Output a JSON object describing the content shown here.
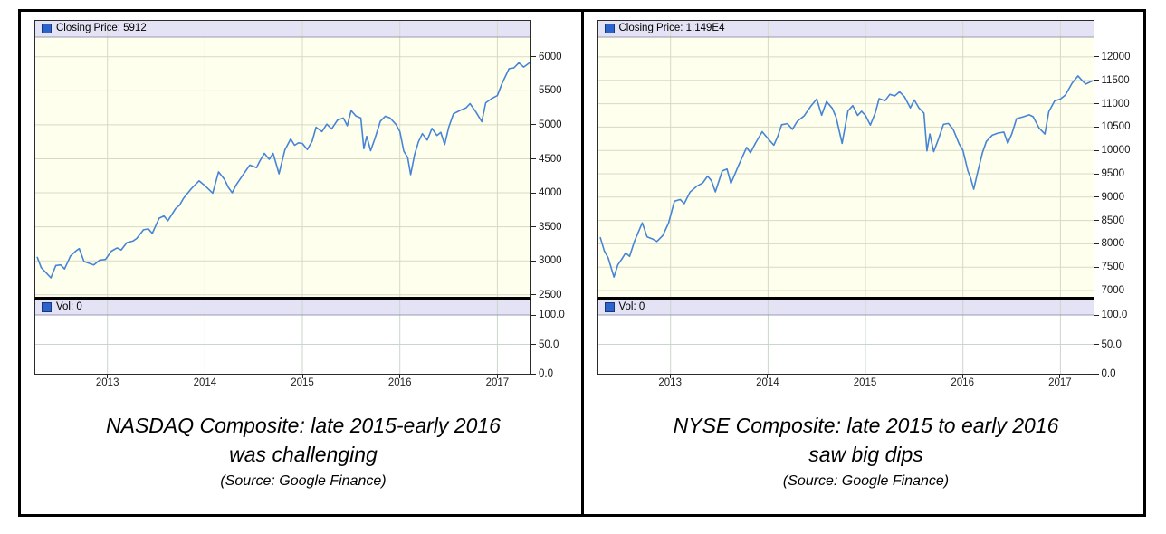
{
  "colors": {
    "line": "#4684d6",
    "legend_swatch": "#2b65cc",
    "legend_swatch_border": "#16377f",
    "plot_bg": "#ffffee",
    "strip_bg": "#e3e3f5",
    "strip_border": "#9a9ab4",
    "grid": "#d7d9c6",
    "vol_grid": "#c9d6c9",
    "panel_border": "#2b2b2b",
    "frame_border": "#000000"
  },
  "chart_data": [
    {
      "type": "line",
      "title": "NASDAQ Composite: late 2015-early 2016 was challenging",
      "legend_label": "Closing Price: 5912",
      "vol_label": "Vol: 0",
      "vol_value": 0,
      "caption": [
        "NASDAQ Composite: late 2015-early 2016",
        "was challenging",
        "(Source: Google Finance)"
      ],
      "xlabel": "",
      "ylabel": "",
      "legend_position": "top-left",
      "grid": true,
      "xticks": [
        2013,
        2014,
        2015,
        2016,
        2017
      ],
      "xlim": [
        2012.26,
        2017.34
      ],
      "yticks": [
        2500,
        3000,
        3500,
        4000,
        4500,
        5000,
        5500,
        6000
      ],
      "ylim": [
        2470,
        6290
      ],
      "vol_yticks": [
        "100.0",
        "50.0",
        "0.0"
      ],
      "vol_ylim": [
        0,
        100
      ],
      "series": [
        {
          "name": "Closing Price",
          "points": [
            [
              2012.28,
              3050
            ],
            [
              2012.32,
              2900
            ],
            [
              2012.36,
              2840
            ],
            [
              2012.42,
              2750
            ],
            [
              2012.47,
              2930
            ],
            [
              2012.52,
              2940
            ],
            [
              2012.56,
              2880
            ],
            [
              2012.62,
              3070
            ],
            [
              2012.68,
              3150
            ],
            [
              2012.71,
              3180
            ],
            [
              2012.76,
              2990
            ],
            [
              2012.82,
              2960
            ],
            [
              2012.86,
              2940
            ],
            [
              2012.92,
              3010
            ],
            [
              2012.98,
              3020
            ],
            [
              2013.04,
              3142
            ],
            [
              2013.1,
              3190
            ],
            [
              2013.14,
              3160
            ],
            [
              2013.2,
              3268
            ],
            [
              2013.26,
              3290
            ],
            [
              2013.3,
              3329
            ],
            [
              2013.37,
              3456
            ],
            [
              2013.42,
              3470
            ],
            [
              2013.46,
              3403
            ],
            [
              2013.53,
              3626
            ],
            [
              2013.58,
              3660
            ],
            [
              2013.62,
              3590
            ],
            [
              2013.7,
              3771
            ],
            [
              2013.74,
              3820
            ],
            [
              2013.78,
              3920
            ],
            [
              2013.86,
              4060
            ],
            [
              2013.94,
              4177
            ],
            [
              2014.0,
              4104
            ],
            [
              2014.08,
              3996
            ],
            [
              2014.14,
              4308
            ],
            [
              2014.2,
              4199
            ],
            [
              2014.24,
              4080
            ],
            [
              2014.28,
              4000
            ],
            [
              2014.32,
              4115
            ],
            [
              2014.38,
              4243
            ],
            [
              2014.46,
              4408
            ],
            [
              2014.53,
              4370
            ],
            [
              2014.56,
              4460
            ],
            [
              2014.61,
              4580
            ],
            [
              2014.66,
              4493
            ],
            [
              2014.7,
              4580
            ],
            [
              2014.76,
              4280
            ],
            [
              2014.82,
              4631
            ],
            [
              2014.88,
              4792
            ],
            [
              2014.92,
              4700
            ],
            [
              2014.96,
              4736
            ],
            [
              2015.0,
              4726
            ],
            [
              2015.05,
              4635
            ],
            [
              2015.1,
              4760
            ],
            [
              2015.14,
              4964
            ],
            [
              2015.2,
              4901
            ],
            [
              2015.25,
              5010
            ],
            [
              2015.3,
              4941
            ],
            [
              2015.36,
              5070
            ],
            [
              2015.42,
              5100
            ],
            [
              2015.46,
              4987
            ],
            [
              2015.5,
              5210
            ],
            [
              2015.55,
              5128
            ],
            [
              2015.6,
              5100
            ],
            [
              2015.63,
              4650
            ],
            [
              2015.66,
              4830
            ],
            [
              2015.7,
              4620
            ],
            [
              2015.74,
              4780
            ],
            [
              2015.8,
              5054
            ],
            [
              2015.85,
              5127
            ],
            [
              2015.9,
              5100
            ],
            [
              2015.96,
              5007
            ],
            [
              2016.0,
              4900
            ],
            [
              2016.04,
              4614
            ],
            [
              2016.08,
              4520
            ],
            [
              2016.11,
              4267
            ],
            [
              2016.15,
              4558
            ],
            [
              2016.19,
              4750
            ],
            [
              2016.23,
              4870
            ],
            [
              2016.28,
              4775
            ],
            [
              2016.33,
              4948
            ],
            [
              2016.38,
              4843
            ],
            [
              2016.42,
              4890
            ],
            [
              2016.46,
              4710
            ],
            [
              2016.5,
              4960
            ],
            [
              2016.55,
              5162
            ],
            [
              2016.62,
              5213
            ],
            [
              2016.68,
              5250
            ],
            [
              2016.72,
              5312
            ],
            [
              2016.78,
              5189
            ],
            [
              2016.84,
              5046
            ],
            [
              2016.88,
              5324
            ],
            [
              2016.94,
              5383
            ],
            [
              2017.0,
              5430
            ],
            [
              2017.05,
              5615
            ],
            [
              2017.12,
              5825
            ],
            [
              2017.17,
              5838
            ],
            [
              2017.22,
              5912
            ],
            [
              2017.27,
              5850
            ],
            [
              2017.33,
              5912
            ]
          ]
        }
      ]
    },
    {
      "type": "line",
      "title": "NYSE Composite: late 2015 to early 2016 saw big dips",
      "legend_label": "Closing Price: 1.149E4",
      "vol_label": "Vol: 0",
      "vol_value": 0,
      "caption": [
        "NYSE Composite: late 2015 to early 2016",
        "saw big dips",
        "(Source: Google Finance)"
      ],
      "xlabel": "",
      "ylabel": "",
      "legend_position": "top-left",
      "grid": true,
      "xticks": [
        2013,
        2014,
        2015,
        2016,
        2017
      ],
      "xlim": [
        2012.26,
        2017.34
      ],
      "yticks": [
        7000,
        7500,
        8000,
        8500,
        9000,
        9500,
        10000,
        10500,
        11000,
        11500,
        12000
      ],
      "ylim": [
        6865,
        12425
      ],
      "vol_yticks": [
        "100.0",
        "50.0",
        "0.0"
      ],
      "vol_ylim": [
        0,
        100
      ],
      "series": [
        {
          "name": "Closing Price",
          "points": [
            [
              2012.28,
              8130
            ],
            [
              2012.32,
              7850
            ],
            [
              2012.36,
              7700
            ],
            [
              2012.42,
              7290
            ],
            [
              2012.46,
              7550
            ],
            [
              2012.5,
              7672
            ],
            [
              2012.54,
              7805
            ],
            [
              2012.58,
              7730
            ],
            [
              2012.63,
              8051
            ],
            [
              2012.68,
              8300
            ],
            [
              2012.71,
              8450
            ],
            [
              2012.76,
              8148
            ],
            [
              2012.82,
              8100
            ],
            [
              2012.86,
              8050
            ],
            [
              2012.92,
              8176
            ],
            [
              2012.98,
              8444
            ],
            [
              2013.04,
              8912
            ],
            [
              2013.1,
              8950
            ],
            [
              2013.14,
              8860
            ],
            [
              2013.2,
              9107
            ],
            [
              2013.27,
              9234
            ],
            [
              2013.33,
              9302
            ],
            [
              2013.38,
              9450
            ],
            [
              2013.42,
              9350
            ],
            [
              2013.46,
              9113
            ],
            [
              2013.53,
              9559
            ],
            [
              2013.58,
              9600
            ],
            [
              2013.62,
              9293
            ],
            [
              2013.7,
              9690
            ],
            [
              2013.78,
              10063
            ],
            [
              2013.82,
              9950
            ],
            [
              2013.87,
              10151
            ],
            [
              2013.94,
              10401
            ],
            [
              2014.0,
              10250
            ],
            [
              2014.06,
              10111
            ],
            [
              2014.1,
              10300
            ],
            [
              2014.14,
              10549
            ],
            [
              2014.2,
              10572
            ],
            [
              2014.25,
              10450
            ],
            [
              2014.3,
              10624
            ],
            [
              2014.37,
              10737
            ],
            [
              2014.44,
              10948
            ],
            [
              2014.5,
              11100
            ],
            [
              2014.55,
              10753
            ],
            [
              2014.6,
              11046
            ],
            [
              2014.66,
              10900
            ],
            [
              2014.7,
              10703
            ],
            [
              2014.76,
              10150
            ],
            [
              2014.82,
              10846
            ],
            [
              2014.87,
              10959
            ],
            [
              2014.92,
              10750
            ],
            [
              2014.96,
              10839
            ],
            [
              2015.0,
              10750
            ],
            [
              2015.05,
              10541
            ],
            [
              2015.1,
              10800
            ],
            [
              2015.14,
              11108
            ],
            [
              2015.2,
              11063
            ],
            [
              2015.25,
              11200
            ],
            [
              2015.3,
              11166
            ],
            [
              2015.35,
              11254
            ],
            [
              2015.4,
              11148
            ],
            [
              2015.46,
              10910
            ],
            [
              2015.5,
              11080
            ],
            [
              2015.55,
              10902
            ],
            [
              2015.6,
              10800
            ],
            [
              2015.63,
              9990
            ],
            [
              2015.66,
              10350
            ],
            [
              2015.7,
              9972
            ],
            [
              2015.75,
              10250
            ],
            [
              2015.8,
              10557
            ],
            [
              2015.85,
              10576
            ],
            [
              2015.9,
              10450
            ],
            [
              2015.96,
              10143
            ],
            [
              2016.0,
              10000
            ],
            [
              2016.05,
              9566
            ],
            [
              2016.08,
              9400
            ],
            [
              2016.11,
              9169
            ],
            [
              2016.15,
              9531
            ],
            [
              2016.2,
              9950
            ],
            [
              2016.24,
              10194
            ],
            [
              2016.3,
              10325
            ],
            [
              2016.36,
              10371
            ],
            [
              2016.42,
              10392
            ],
            [
              2016.46,
              10150
            ],
            [
              2016.5,
              10350
            ],
            [
              2016.55,
              10679
            ],
            [
              2016.62,
              10721
            ],
            [
              2016.68,
              10760
            ],
            [
              2016.72,
              10722
            ],
            [
              2016.78,
              10481
            ],
            [
              2016.84,
              10350
            ],
            [
              2016.88,
              10826
            ],
            [
              2016.94,
              11057
            ],
            [
              2017.0,
              11100
            ],
            [
              2017.05,
              11184
            ],
            [
              2017.12,
              11439
            ],
            [
              2017.18,
              11593
            ],
            [
              2017.22,
              11500
            ],
            [
              2017.26,
              11420
            ],
            [
              2017.33,
              11490
            ]
          ]
        }
      ]
    }
  ]
}
